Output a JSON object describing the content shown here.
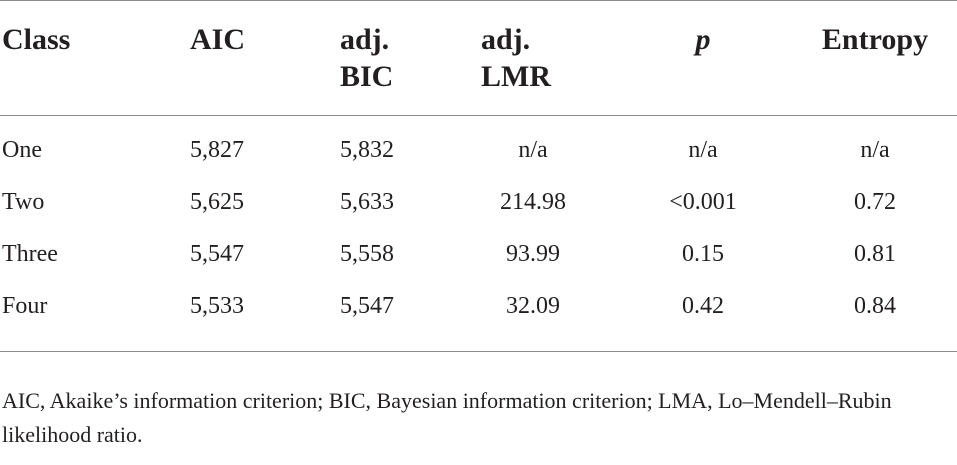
{
  "table": {
    "headers": {
      "class": "Class",
      "aic": "AIC",
      "adj_bic_line1": "adj.",
      "adj_bic_line2": "BIC",
      "adj_lmr_line1": "adj.",
      "adj_lmr_line2": "LMR",
      "p": "p",
      "entropy": "Entropy"
    },
    "rows": [
      {
        "class": "One",
        "aic": "5,827",
        "adj_bic": "5,832",
        "adj_lmr": "n/a",
        "p": "n/a",
        "entropy": "n/a"
      },
      {
        "class": "Two",
        "aic": "5,625",
        "adj_bic": "5,633",
        "adj_lmr": "214.98",
        "p": "<0.001",
        "entropy": "0.72"
      },
      {
        "class": "Three",
        "aic": "5,547",
        "adj_bic": "5,558",
        "adj_lmr": "93.99",
        "p": "0.15",
        "entropy": "0.81"
      },
      {
        "class": "Four",
        "aic": "5,533",
        "adj_bic": "5,547",
        "adj_lmr": "32.09",
        "p": "0.42",
        "entropy": "0.84"
      }
    ]
  },
  "footnote": {
    "text": "AIC, Akaike’s information criterion; BIC, Bayesian information criterion; LMA, Lo–Mendell–Rubin likelihood ratio."
  }
}
